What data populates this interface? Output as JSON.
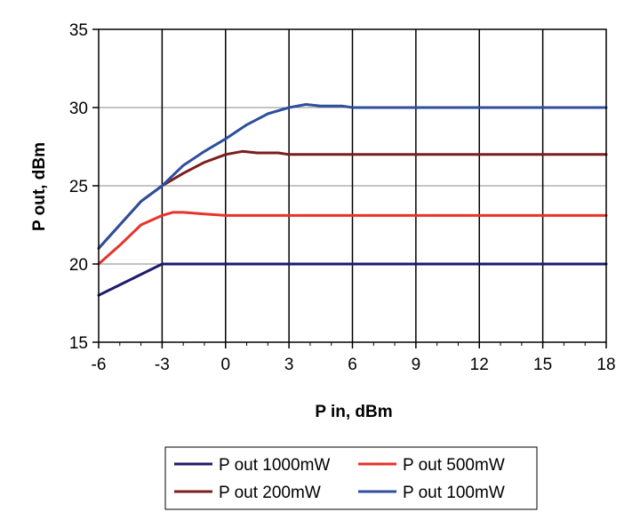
{
  "chart_data": {
    "type": "line",
    "title": "",
    "xlabel": "P in, dBm",
    "ylabel": "P out, dBm",
    "xlim": [
      -6,
      18
    ],
    "ylim": [
      15,
      35
    ],
    "xticks": [
      -6,
      -3,
      0,
      3,
      6,
      9,
      12,
      15,
      18
    ],
    "yticks": [
      15,
      20,
      25,
      30,
      35
    ],
    "grid": true,
    "legend_position": "bottom",
    "series": [
      {
        "name": "P out 1000mW",
        "color": "#1f1a6e",
        "x": [
          -6,
          -3,
          18
        ],
        "y": [
          18,
          20,
          20
        ]
      },
      {
        "name": "P out 500mW",
        "color": "#e8332a",
        "x": [
          -6,
          -5,
          -4,
          -3,
          -2.5,
          -2,
          -1,
          0,
          18
        ],
        "y": [
          20,
          21.2,
          22.5,
          23.1,
          23.3,
          23.3,
          23.2,
          23.1,
          23.1
        ]
      },
      {
        "name": "P out 200mW",
        "color": "#7a1e1e",
        "x": [
          -6,
          -5,
          -4,
          -3,
          -2,
          -1,
          0,
          0.8,
          1.5,
          2.5,
          3,
          18
        ],
        "y": [
          21,
          22.5,
          24,
          25,
          25.8,
          26.5,
          27,
          27.2,
          27.1,
          27.1,
          27,
          27
        ]
      },
      {
        "name": "P out 100mW",
        "color": "#2e4f9e",
        "x": [
          -6,
          -5,
          -4,
          -3,
          -2,
          -1,
          0,
          1,
          2,
          3,
          3.8,
          4.5,
          5.5,
          6,
          18
        ],
        "y": [
          21,
          22.5,
          24,
          25,
          26.3,
          27.2,
          28,
          28.9,
          29.6,
          30,
          30.2,
          30.1,
          30.1,
          30,
          30
        ]
      }
    ]
  }
}
